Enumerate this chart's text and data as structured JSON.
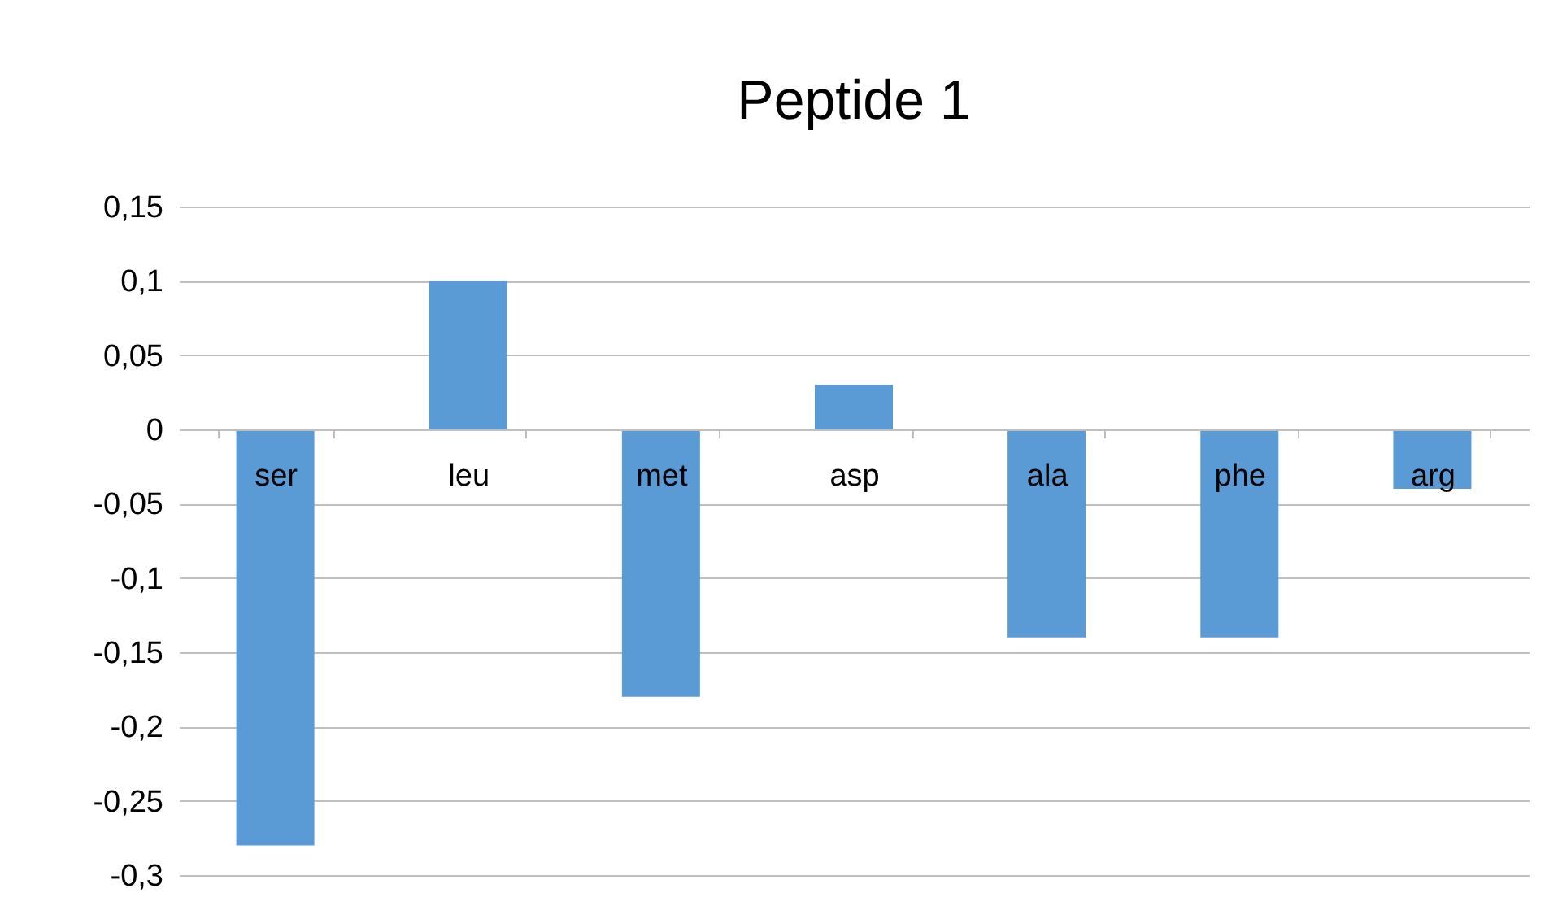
{
  "chart_data": {
    "type": "bar",
    "title": "Peptide 1",
    "categories": [
      "ser",
      "leu",
      "met",
      "asp",
      "ala",
      "phe",
      "arg"
    ],
    "values": [
      -0.28,
      0.1,
      -0.18,
      0.03,
      -0.14,
      -0.14,
      -0.04
    ],
    "color": "#5b9bd5",
    "ylim": [
      -0.3,
      0.15
    ],
    "yticks": [
      {
        "value": -0.3,
        "label": "-0,3"
      },
      {
        "value": -0.25,
        "label": "-0,25"
      },
      {
        "value": -0.2,
        "label": "-0,2"
      },
      {
        "value": -0.15,
        "label": "-0,15"
      },
      {
        "value": -0.1,
        "label": "-0,1"
      },
      {
        "value": -0.05,
        "label": "-0,05"
      },
      {
        "value": 0,
        "label": "0"
      },
      {
        "value": 0.05,
        "label": "0,05"
      },
      {
        "value": 0.1,
        "label": "0,1"
      },
      {
        "value": 0.15,
        "label": "0,15"
      }
    ],
    "grid": "y"
  }
}
